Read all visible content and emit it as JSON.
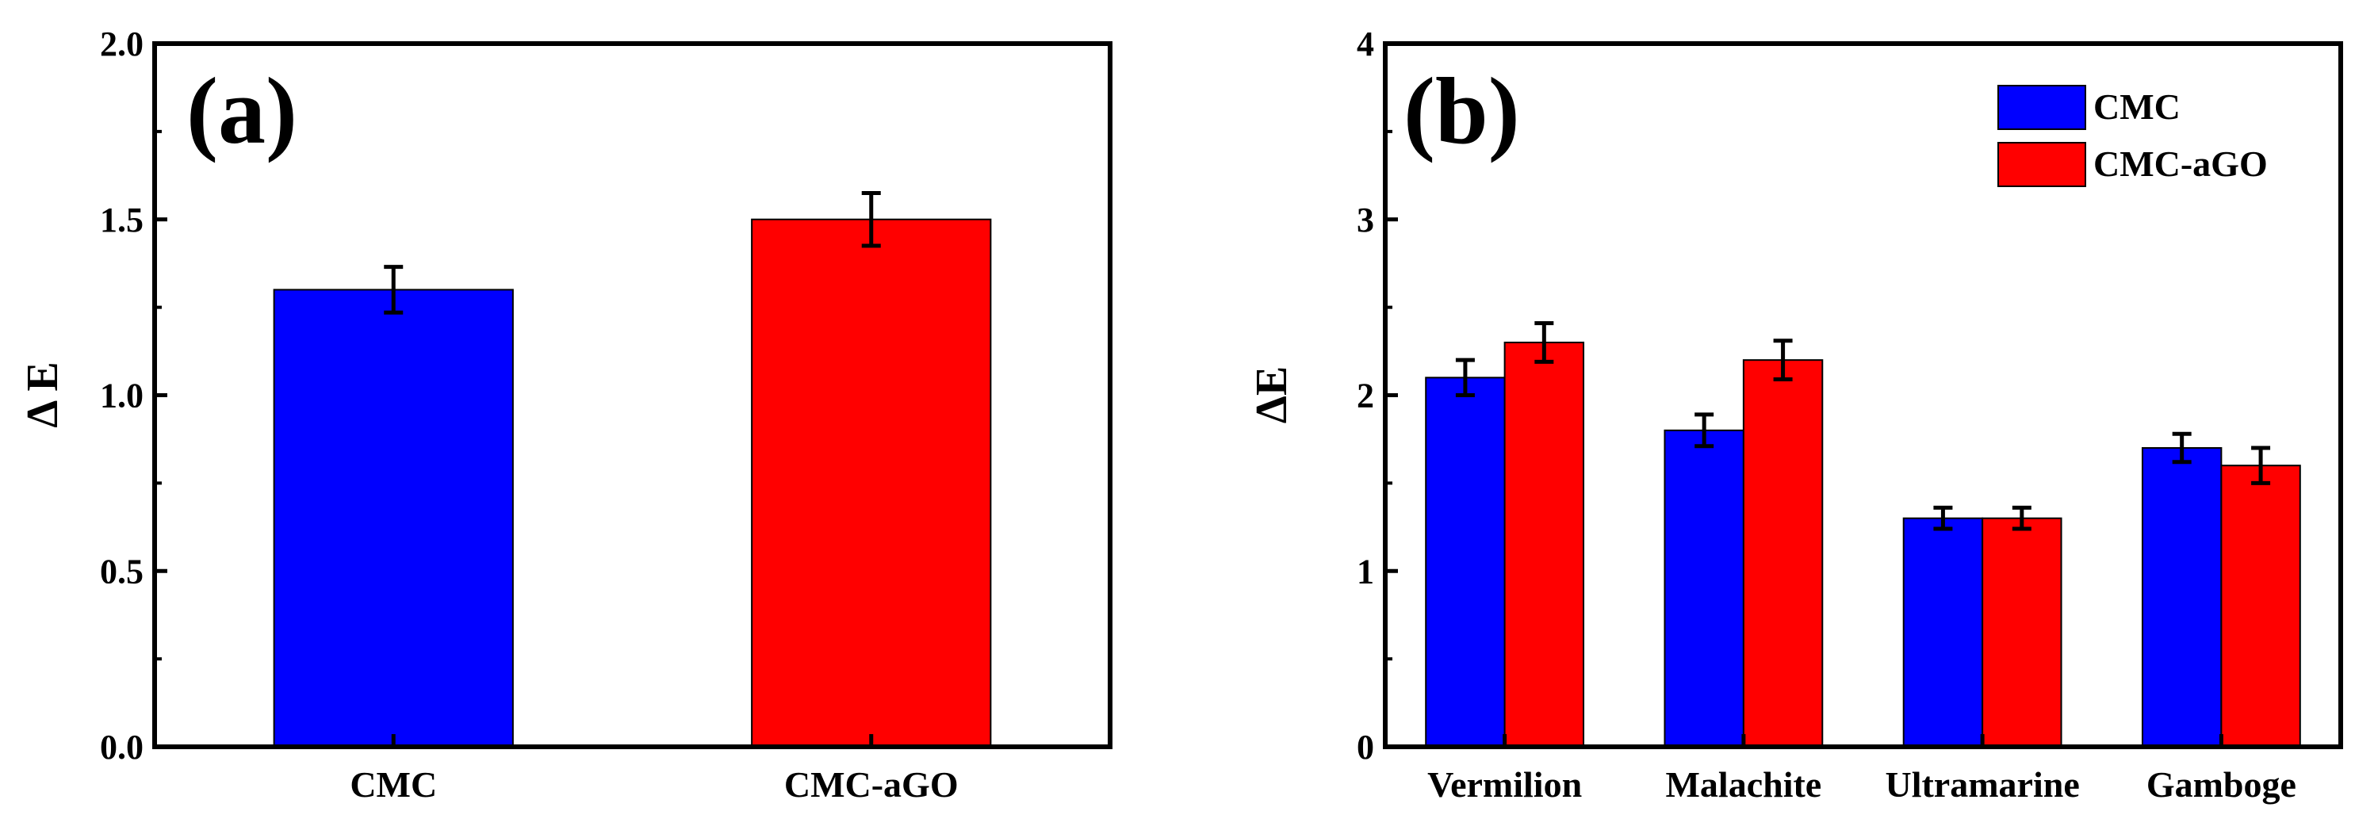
{
  "chart_data": [
    {
      "panel": "a",
      "panel_label": "(a)",
      "type": "bar",
      "categories": [
        "CMC",
        "CMC-aGO"
      ],
      "values": [
        1.3,
        1.5
      ],
      "errors": [
        0.065,
        0.075
      ],
      "colors": [
        "#0000ff",
        "#ff0000"
      ],
      "ylabel": "Δ E",
      "ylim": [
        0,
        2.0
      ],
      "yticks": [
        "0.0",
        "0.5",
        "1.0",
        "1.5",
        "2.0"
      ]
    },
    {
      "panel": "b",
      "panel_label": "(b)",
      "type": "bar",
      "categories": [
        "Vermilion",
        "Malachite",
        "Ultramarine",
        "Gamboge"
      ],
      "series": [
        {
          "name": "CMC",
          "color": "#0000ff",
          "values": [
            2.1,
            1.8,
            1.3,
            1.7
          ],
          "errors": [
            0.1,
            0.09,
            0.06,
            0.08
          ]
        },
        {
          "name": "CMC-aGO",
          "color": "#ff0000",
          "values": [
            2.3,
            2.2,
            1.3,
            1.6
          ],
          "errors": [
            0.11,
            0.11,
            0.06,
            0.1
          ]
        }
      ],
      "ylabel": "ΔE",
      "ylim": [
        0,
        4
      ],
      "yticks": [
        "0",
        "1",
        "2",
        "3",
        "4"
      ],
      "legend_position": "top-right"
    }
  ]
}
